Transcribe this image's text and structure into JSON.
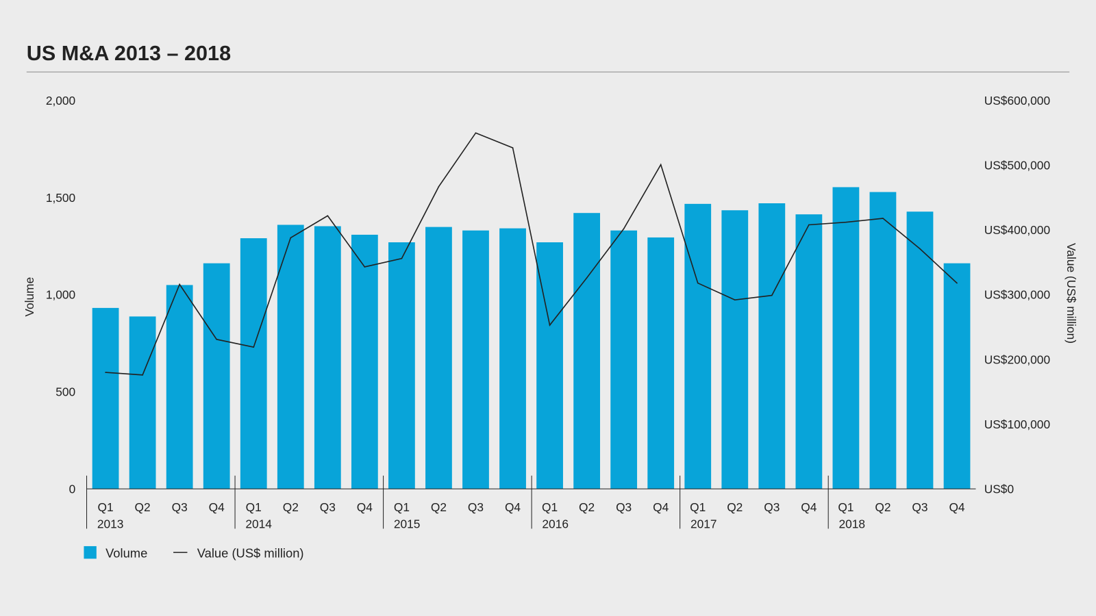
{
  "chart_data": {
    "type": "bar+line",
    "title": "US M&A 2013 – 2018",
    "ylabel": "Volume",
    "y2label": "Value (US$ million)",
    "ylim": [
      0,
      2000
    ],
    "y2lim": [
      0,
      600000
    ],
    "yticks": [
      {
        "v": 0,
        "label": "0"
      },
      {
        "v": 500,
        "label": "500"
      },
      {
        "v": 1000,
        "label": "1,000"
      },
      {
        "v": 1500,
        "label": "1,500"
      },
      {
        "v": 2000,
        "label": "2,000"
      }
    ],
    "y2ticks": [
      {
        "v": 0,
        "label": "US$0"
      },
      {
        "v": 100000,
        "label": "US$100,000"
      },
      {
        "v": 200000,
        "label": "US$200,000"
      },
      {
        "v": 300000,
        "label": "US$300,000"
      },
      {
        "v": 400000,
        "label": "US$400,000"
      },
      {
        "v": 500000,
        "label": "US$500,000"
      },
      {
        "v": 600000,
        "label": "US$600,000"
      }
    ],
    "years": [
      "2013",
      "2014",
      "2015",
      "2016",
      "2017",
      "2018"
    ],
    "quarters": [
      "Q1",
      "Q2",
      "Q3",
      "Q4"
    ],
    "series": [
      {
        "name": "Volume",
        "type": "bar",
        "color": "#08a4d9",
        "values": [
          932,
          888,
          1050,
          1162,
          1291,
          1360,
          1353,
          1309,
          1270,
          1349,
          1331,
          1342,
          1270,
          1421,
          1331,
          1295,
          1468,
          1435,
          1471,
          1414,
          1554,
          1529,
          1428,
          1162
        ]
      },
      {
        "name": "Value (US$ million)",
        "type": "line",
        "color": "#222222",
        "values": [
          180000,
          176000,
          316000,
          231000,
          219000,
          388000,
          422000,
          343000,
          356000,
          467000,
          550000,
          527000,
          253000,
          326000,
          402000,
          501000,
          318000,
          292000,
          299000,
          408000,
          412000,
          418000,
          371000,
          318000
        ]
      }
    ],
    "legend": {
      "position": "bottom-left",
      "items": [
        "Volume",
        "Value (US$ million)"
      ]
    },
    "grid": false
  }
}
